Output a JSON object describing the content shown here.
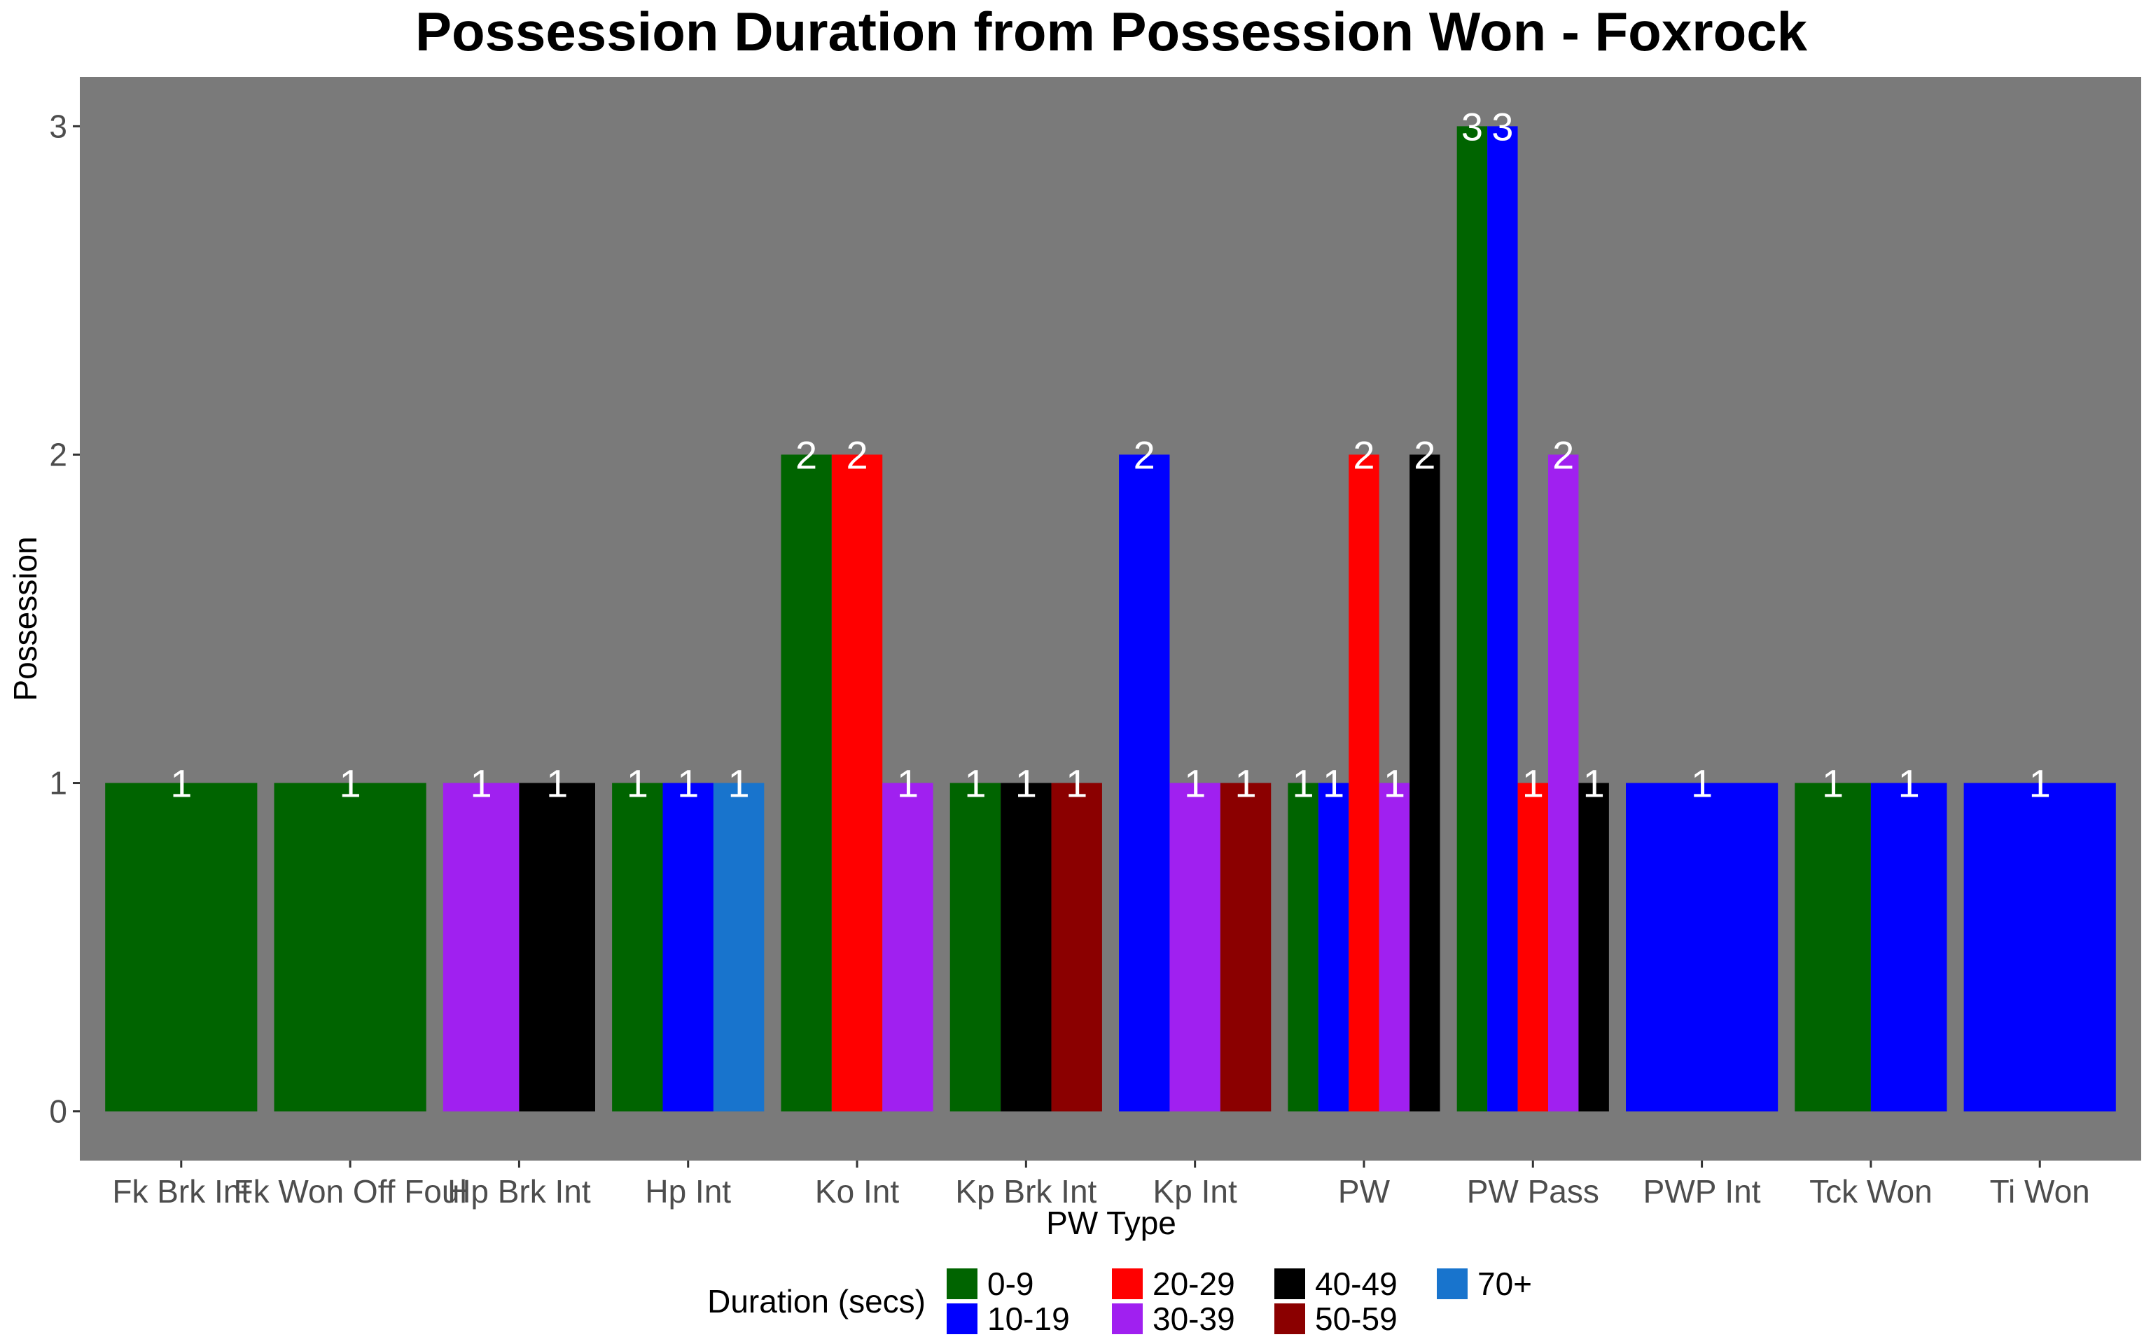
{
  "chart_data": {
    "type": "bar",
    "title": "Possession Duration from Possession Won - Foxrock",
    "xlabel": "PW Type",
    "ylabel": "Possession",
    "ylim": [
      -0.15,
      3.15
    ],
    "yticks": [
      "0",
      "1",
      "2",
      "3"
    ],
    "grid": false,
    "position": "dodge",
    "legend": {
      "title": "Duration (secs)",
      "placement": "bottom",
      "items": [
        {
          "label": "0-9",
          "color": "#006400"
        },
        {
          "label": "10-19",
          "color": "#0000FF"
        },
        {
          "label": "20-29",
          "color": "#FF0000"
        },
        {
          "label": "30-39",
          "color": "#A020F0"
        },
        {
          "label": "40-49",
          "color": "#000000"
        },
        {
          "label": "50-59",
          "color": "#8B0000"
        },
        {
          "label": "70+",
          "color": "#1874CD"
        }
      ]
    },
    "categories": [
      "Fk Brk Int",
      "Fk Won Off Foul",
      "Hp Brk Int",
      "Hp Int",
      "Ko Int",
      "Kp Brk Int",
      "Kp Int",
      "PW",
      "PW Pass",
      "PWP Int",
      "Tck Won",
      "Ti Won"
    ],
    "bars": [
      {
        "category": "Fk Brk Int",
        "groups": [
          {
            "duration": "0-9",
            "value": 1
          }
        ]
      },
      {
        "category": "Fk Won Off Foul",
        "groups": [
          {
            "duration": "0-9",
            "value": 1
          }
        ]
      },
      {
        "category": "Hp Brk Int",
        "groups": [
          {
            "duration": "30-39",
            "value": 1
          },
          {
            "duration": "40-49",
            "value": 1
          }
        ]
      },
      {
        "category": "Hp Int",
        "groups": [
          {
            "duration": "0-9",
            "value": 1
          },
          {
            "duration": "10-19",
            "value": 1
          },
          {
            "duration": "70+",
            "value": 1
          }
        ]
      },
      {
        "category": "Ko Int",
        "groups": [
          {
            "duration": "0-9",
            "value": 2
          },
          {
            "duration": "20-29",
            "value": 2
          },
          {
            "duration": "30-39",
            "value": 1
          }
        ]
      },
      {
        "category": "Kp Brk Int",
        "groups": [
          {
            "duration": "0-9",
            "value": 1
          },
          {
            "duration": "40-49",
            "value": 1
          },
          {
            "duration": "50-59",
            "value": 1
          }
        ]
      },
      {
        "category": "Kp Int",
        "groups": [
          {
            "duration": "10-19",
            "value": 2
          },
          {
            "duration": "30-39",
            "value": 1
          },
          {
            "duration": "50-59",
            "value": 1
          }
        ]
      },
      {
        "category": "PW",
        "groups": [
          {
            "duration": "0-9",
            "value": 1
          },
          {
            "duration": "10-19",
            "value": 1
          },
          {
            "duration": "20-29",
            "value": 2
          },
          {
            "duration": "30-39",
            "value": 1
          },
          {
            "duration": "40-49",
            "value": 2
          }
        ]
      },
      {
        "category": "PW Pass",
        "groups": [
          {
            "duration": "0-9",
            "value": 3
          },
          {
            "duration": "10-19",
            "value": 3
          },
          {
            "duration": "20-29",
            "value": 1
          },
          {
            "duration": "30-39",
            "value": 2
          },
          {
            "duration": "40-49",
            "value": 1
          }
        ]
      },
      {
        "category": "PWP Int",
        "groups": [
          {
            "duration": "10-19",
            "value": 1
          }
        ]
      },
      {
        "category": "Tck Won",
        "groups": [
          {
            "duration": "0-9",
            "value": 1
          },
          {
            "duration": "10-19",
            "value": 1
          }
        ]
      },
      {
        "category": "Ti Won",
        "groups": [
          {
            "duration": "10-19",
            "value": 1
          }
        ]
      }
    ],
    "panel_color": "#7A7A7A",
    "label_color": "#FFFFFF"
  }
}
